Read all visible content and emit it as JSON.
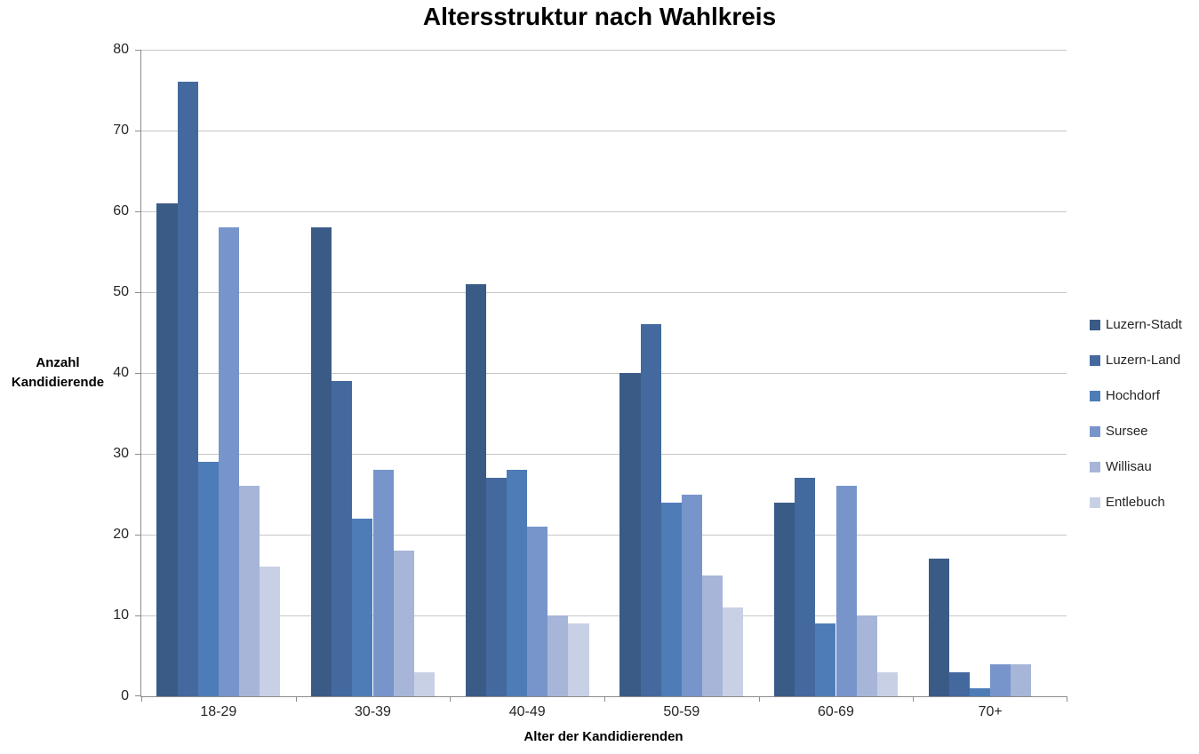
{
  "chart": {
    "title": "Altersstruktur nach Wahlkreis",
    "x_axis_title": "Alter der Kandidierenden",
    "y_axis_title_lines": [
      "Anzahl",
      "Kandidierende"
    ]
  },
  "chart_data": {
    "type": "bar",
    "title": "Altersstruktur nach Wahlkreis",
    "xlabel": "Alter der Kandidierenden",
    "ylabel": "Anzahl Kandidierende",
    "categories": [
      "18-29",
      "30-39",
      "40-49",
      "50-59",
      "60-69",
      "70+"
    ],
    "series": [
      {
        "name": "Luzern-Stadt",
        "color": "#3B5B87",
        "values": [
          61,
          58,
          51,
          40,
          24,
          17
        ]
      },
      {
        "name": "Luzern-Land",
        "color": "#44699E",
        "values": [
          76,
          39,
          27,
          46,
          27,
          3
        ]
      },
      {
        "name": "Hochdorf",
        "color": "#4E7CB7",
        "values": [
          29,
          22,
          28,
          24,
          9,
          1
        ]
      },
      {
        "name": "Sursee",
        "color": "#7795CB",
        "values": [
          58,
          28,
          21,
          25,
          26,
          4
        ]
      },
      {
        "name": "Willisau",
        "color": "#A6B5D8",
        "values": [
          26,
          18,
          10,
          15,
          10,
          4
        ]
      },
      {
        "name": "Entlebuch",
        "color": "#C7D0E5",
        "values": [
          16,
          3,
          9,
          11,
          3,
          0
        ]
      }
    ],
    "ylim": [
      0,
      80
    ],
    "ytick_step": 10,
    "grid": true,
    "legend_position": "right"
  },
  "style": {
    "gridline_color": "#C6C6C6",
    "axis_color": "#8C8C8C",
    "background": "#FFFFFF",
    "tick_label_color": "#262626"
  }
}
